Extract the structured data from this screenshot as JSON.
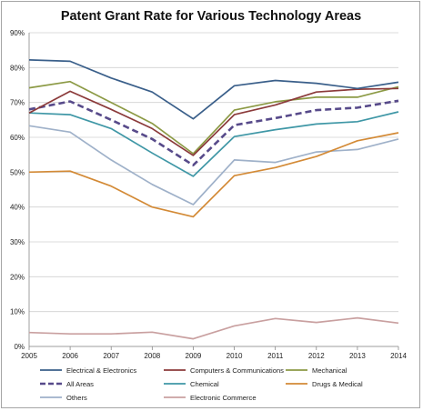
{
  "chart_data": {
    "type": "line",
    "title": "Patent Grant Rate for Various Technology Areas",
    "xlabel": "",
    "ylabel": "",
    "x": [
      "2005",
      "2006",
      "2007",
      "2008",
      "2009",
      "2010",
      "2011",
      "2012",
      "2013",
      "2014"
    ],
    "ylim": [
      0,
      90
    ],
    "yticks": [
      0,
      10,
      20,
      30,
      40,
      50,
      60,
      70,
      80,
      90
    ],
    "ytick_labels": [
      "0%",
      "10%",
      "20%",
      "30%",
      "40%",
      "50%",
      "60%",
      "70%",
      "80%",
      "90%"
    ],
    "grid": true,
    "legend_position": "bottom",
    "series": [
      {
        "name": "Electrical & Electronics",
        "color": "#3a5f8a",
        "dashed": false,
        "values": [
          82.2,
          81.8,
          77.0,
          73.0,
          65.3,
          74.8,
          76.3,
          75.5,
          74.0,
          75.8
        ]
      },
      {
        "name": "Computers & Communications",
        "color": "#8b3a3a",
        "dashed": false,
        "values": [
          67.0,
          73.2,
          68.0,
          62.5,
          54.8,
          66.5,
          69.3,
          73.0,
          73.8,
          74.0
        ]
      },
      {
        "name": "Mechanical",
        "color": "#8c9a45",
        "dashed": false,
        "values": [
          74.2,
          76.0,
          70.0,
          64.0,
          55.3,
          67.8,
          70.2,
          71.5,
          71.5,
          74.5
        ]
      },
      {
        "name": "All Areas",
        "color": "#574a8a",
        "dashed": true,
        "values": [
          68.0,
          70.3,
          65.0,
          59.5,
          52.0,
          63.5,
          65.5,
          67.8,
          68.5,
          70.5
        ]
      },
      {
        "name": "Chemical",
        "color": "#3f97a6",
        "dashed": false,
        "values": [
          67.0,
          66.5,
          62.5,
          55.5,
          48.8,
          60.2,
          62.2,
          63.8,
          64.5,
          67.3
        ]
      },
      {
        "name": "Drugs & Medical",
        "color": "#d38a36",
        "dashed": false,
        "values": [
          50.0,
          50.3,
          46.0,
          40.0,
          37.2,
          49.0,
          51.3,
          54.5,
          59.0,
          61.3
        ]
      },
      {
        "name": "Others",
        "color": "#9fb1c9",
        "dashed": false,
        "values": [
          63.3,
          61.5,
          53.5,
          46.5,
          40.7,
          53.5,
          52.8,
          55.8,
          56.5,
          59.5
        ]
      },
      {
        "name": "Electronic Commerce",
        "color": "#c9a0a0",
        "dashed": false,
        "values": [
          4.0,
          3.6,
          3.6,
          4.1,
          2.2,
          5.9,
          8.0,
          6.9,
          8.2,
          6.7
        ]
      }
    ]
  }
}
